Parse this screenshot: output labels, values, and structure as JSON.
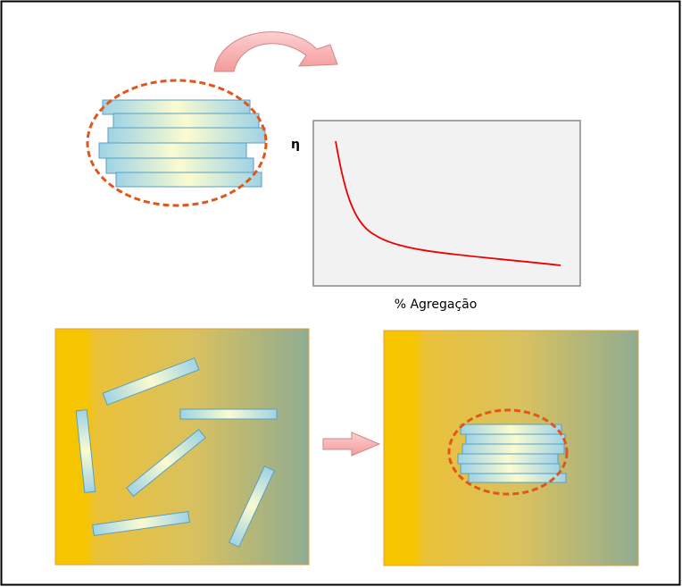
{
  "graph": {
    "y_label": "η",
    "x_label": "% Agregação"
  }
}
